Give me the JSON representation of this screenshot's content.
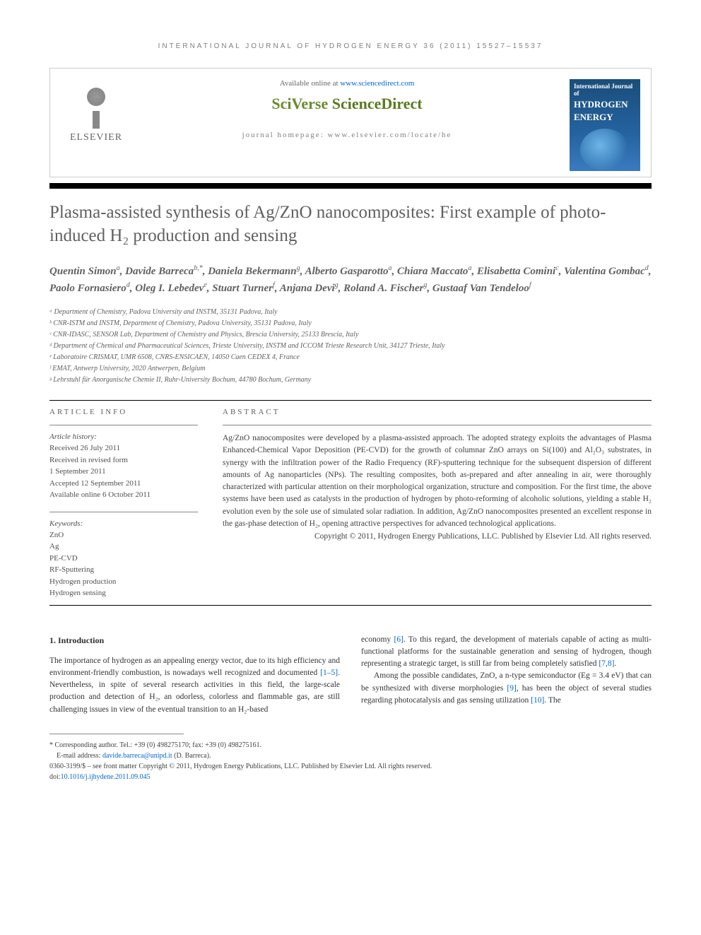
{
  "journal_bar": "INTERNATIONAL JOURNAL OF HYDROGEN ENERGY 36 (2011) 15527–15537",
  "available_text": "Available online at ",
  "available_url": "www.sciencedirect.com",
  "sciverse_a": "SciVerse ",
  "sciverse_b": "ScienceDirect",
  "homepage_text": "journal homepage: www.elsevier.com/locate/he",
  "elsevier_label": "ELSEVIER",
  "cover": {
    "line1": "International Journal of",
    "line2": "HYDROGEN",
    "line3": "ENERGY"
  },
  "title": "Plasma-assisted synthesis of Ag/ZnO nanocomposites: First example of photo-induced H₂ production and sensing",
  "authors_html": "Quentin Simon<sup>a</sup>, Davide Barreca<sup>b,*</sup>, Daniela Bekermann<sup>g</sup>, Alberto Gasparotto<sup>a</sup>, Chiara Maccato<sup>a</sup>, Elisabetta Comini<sup>c</sup>, Valentina Gombac<sup>d</sup>, Paolo Fornasiero<sup>d</sup>, Oleg I. Lebedev<sup>e</sup>, Stuart Turner<sup>f</sup>, Anjana Devi<sup>g</sup>, Roland A. Fischer<sup>g</sup>, Gustaaf Van Tendeloo<sup>f</sup>",
  "affiliations": [
    "ᵃ Department of Chemistry, Padova University and INSTM, 35131 Padova, Italy",
    "ᵇ CNR-ISTM and INSTM, Department of Chemistry, Padova University, 35131 Padova, Italy",
    "ᶜ CNR-IDASC, SENSOR Lab, Department of Chemistry and Physics, Brescia University, 25133 Brescia, Italy",
    "ᵈ Department of Chemical and Pharmaceutical Sciences, Trieste University, INSTM and ICCOM Trieste Research Unit, 34127 Trieste, Italy",
    "ᵉ Laboratoire CRISMAT, UMR 6508, CNRS-ENSICAEN, 14050 Caen CEDEX 4, France",
    "ᶠ EMAT, Antwerp University, 2020 Antwerpen, Belgium",
    "ᵍ Lehrstuhl für Anorganische Chemie II, Ruhr-University Bochum, 44780 Bochum, Germany"
  ],
  "info": {
    "heading": "ARTICLE INFO",
    "history_label": "Article history:",
    "history": [
      "Received 26 July 2011",
      "Received in revised form",
      "1 September 2011",
      "Accepted 12 September 2011",
      "Available online 6 October 2011"
    ],
    "keywords_label": "Keywords:",
    "keywords": [
      "ZnO",
      "Ag",
      "PE-CVD",
      "RF-Sputtering",
      "Hydrogen production",
      "Hydrogen sensing"
    ]
  },
  "abstract": {
    "heading": "ABSTRACT",
    "text": "Ag/ZnO nanocomposites were developed by a plasma-assisted approach. The adopted strategy exploits the advantages of Plasma Enhanced-Chemical Vapor Deposition (PE-CVD) for the growth of columnar ZnO arrays on Si(100) and Al₂O₃ substrates, in synergy with the infiltration power of the Radio Frequency (RF)-sputtering technique for the subsequent dispersion of different amounts of Ag nanoparticles (NPs). The resulting composites, both as-prepared and after annealing in air, were thoroughly characterized with particular attention on their morphological organization, structure and composition. For the first time, the above systems have been used as catalysts in the production of hydrogen by photo-reforming of alcoholic solutions, yielding a stable H₂ evolution even by the sole use of simulated solar radiation. In addition, Ag/ZnO nanocomposites presented an excellent response in the gas-phase detection of H₂, opening attractive perspectives for advanced technological applications.",
    "copyright": "Copyright © 2011, Hydrogen Energy Publications, LLC. Published by Elsevier Ltd. All rights reserved."
  },
  "section1_heading": "1.        Introduction",
  "body": {
    "col1_p1_a": "The importance of hydrogen as an appealing energy vector, due to its high efficiency and environment-friendly combustion, is nowadays well recognized and documented ",
    "col1_ref1": "[1–5]",
    "col1_p1_b": ". Nevertheless, in spite of several research activities in this field, the large-scale production and detection of H₂, an odorless, colorless and flammable gas, are still challenging issues in view of the eventual transition to an H₂-based",
    "col2_p1_a": "economy ",
    "col2_ref6": "[6]",
    "col2_p1_b": ". To this regard, the development of materials capable of acting as multi-functional platforms for the sustainable generation and sensing of hydrogen, though representing a strategic target, is still far from being completely satisfied ",
    "col2_ref78": "[7,8]",
    "col2_p1_c": ".",
    "col2_p2_a": "Among the possible candidates, ZnO, a n-type semiconductor (Eg = 3.4 eV) that can be synthesized with diverse morphologies ",
    "col2_ref9": "[9]",
    "col2_p2_b": ", has been the object of several studies regarding photocatalysis and gas sensing utilization ",
    "col2_ref10": "[10]",
    "col2_p2_c": ". The"
  },
  "footer": {
    "corr": "* Corresponding author. Tel.: +39 (0) 498275170; fax: +39 (0) 498275161.",
    "email_label": "E-mail address: ",
    "email": "davide.barreca@unipd.it",
    "email_suffix": " (D. Barreca).",
    "issn": "0360-3199/$ – see front matter Copyright © 2011, Hydrogen Energy Publications, LLC. Published by Elsevier Ltd. All rights reserved.",
    "doi_label": "doi:",
    "doi": "10.1016/j.ijhydene.2011.09.045"
  },
  "colors": {
    "link": "#0066cc",
    "heading_gray": "#606060",
    "sciverse_green": "#6a8a2e",
    "cover_blue": "#2563a0"
  }
}
